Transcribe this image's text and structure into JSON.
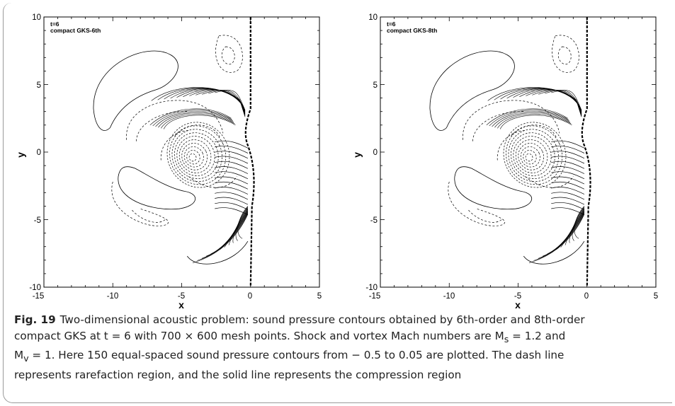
{
  "figure": {
    "panels": [
      {
        "text_line1": "t=6",
        "text_line2": "compact GKS-6th"
      },
      {
        "text_line1": "t=6",
        "text_line2": "compact GKS-8th"
      }
    ],
    "xlabel": "x",
    "ylabel": "y",
    "xticks": [
      "-15",
      "-10",
      "-5",
      "0",
      "5"
    ],
    "yticks": [
      "10",
      "5",
      "0",
      "-5",
      "-10"
    ],
    "x_range": [
      -15,
      5
    ],
    "y_range": [
      -10,
      10
    ],
    "line_color": "#000000"
  },
  "caption": {
    "label": "Fig. 19",
    "line1": "Two-dimensional acoustic problem: sound pressure contours obtained by 6th-order and 8th-order",
    "line2": "compact GKS at t = 6 with 700 × 600 mesh points. Shock and vortex Mach numbers are M",
    "line2_sub": "s",
    "line2_end": " = 1.2 and",
    "line3_start": "M",
    "line3_sub": "v",
    "line3": " = 1. Here 150 equal-spaced sound pressure contours from − 0.5 to 0.05 are plotted. The dash line",
    "line4": "represents rarefaction region, and the solid line represents the compression region"
  }
}
